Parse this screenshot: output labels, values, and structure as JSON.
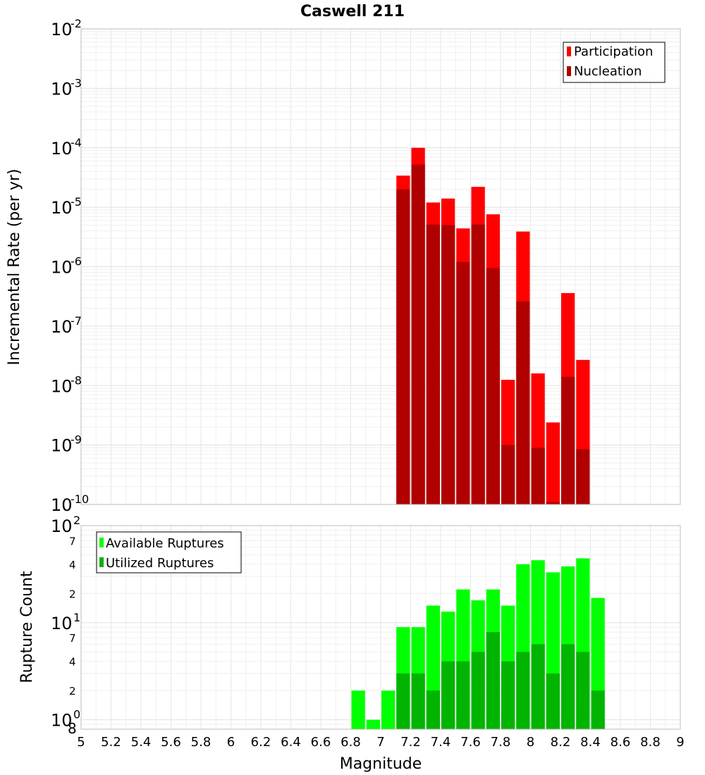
{
  "chart_data": [
    {
      "type": "bar",
      "panel": "top",
      "title": "Caswell 211",
      "ylabel": "Incremental Rate (per yr)",
      "yscale": "log",
      "ylim": [
        1e-10,
        0.01
      ],
      "xlim": [
        5,
        9
      ],
      "bar_width": 0.1,
      "grid": true,
      "legend_position": "top-right",
      "x": [
        7.15,
        7.25,
        7.35,
        7.45,
        7.55,
        7.65,
        7.75,
        7.85,
        7.95,
        8.05,
        8.15,
        8.25,
        8.35
      ],
      "series": [
        {
          "name": "Participation",
          "color": "#ff0000",
          "values": [
            3.4e-05,
            0.0001,
            1.2e-05,
            1.4e-05,
            4.4e-06,
            2.2e-05,
            7.6e-06,
            1.25e-08,
            3.9e-06,
            1.6e-08,
            2.4e-09,
            3.6e-07,
            2.7e-08
          ]
        },
        {
          "name": "Nucleation",
          "color": "#b00000",
          "values": [
            2e-05,
            5.2e-05,
            5.1e-06,
            5e-06,
            1.2e-06,
            5.1e-06,
            9.5e-07,
            1e-09,
            2.6e-07,
            9e-10,
            1.1e-10,
            1.4e-08,
            8.5e-10
          ]
        }
      ]
    },
    {
      "type": "bar",
      "panel": "bottom",
      "xlabel": "Magnitude",
      "ylabel": "Rupture Count",
      "yscale": "log",
      "ylim": [
        0.8,
        100
      ],
      "xlim": [
        5,
        9
      ],
      "bar_width": 0.1,
      "grid": true,
      "legend_position": "top-left",
      "x": [
        6.85,
        6.95,
        7.05,
        7.15,
        7.25,
        7.35,
        7.45,
        7.55,
        7.65,
        7.75,
        7.85,
        7.95,
        8.05,
        8.15,
        8.25,
        8.35,
        8.45
      ],
      "series": [
        {
          "name": "Available Ruptures",
          "color": "#00ff00",
          "values": [
            2,
            1,
            2,
            9,
            9,
            15,
            13,
            22,
            17,
            22,
            15,
            40,
            44,
            33,
            38,
            46,
            18
          ]
        },
        {
          "name": "Utilized Ruptures",
          "color": "#00b400",
          "values": [
            0,
            0,
            0,
            3,
            3,
            2,
            4,
            4,
            5,
            8,
            4,
            5,
            6,
            3,
            6,
            5,
            2
          ]
        }
      ]
    }
  ],
  "x_ticks": [
    "5",
    "5.2",
    "5.4",
    "5.6",
    "5.8",
    "6",
    "6.2",
    "6.4",
    "6.6",
    "6.8",
    "7",
    "7.2",
    "7.4",
    "7.6",
    "7.8",
    "8",
    "8.2",
    "8.4",
    "8.6",
    "8.8",
    "9"
  ],
  "top_y_ticks": [
    {
      "base": "10",
      "exp": "-2",
      "value": 0.01
    },
    {
      "base": "10",
      "exp": "-3",
      "value": 0.001
    },
    {
      "base": "10",
      "exp": "-4",
      "value": 0.0001
    },
    {
      "base": "10",
      "exp": "-5",
      "value": 1e-05
    },
    {
      "base": "10",
      "exp": "-6",
      "value": 1e-06
    },
    {
      "base": "10",
      "exp": "-7",
      "value": 1e-07
    },
    {
      "base": "10",
      "exp": "-8",
      "value": 1e-08
    },
    {
      "base": "10",
      "exp": "-9",
      "value": 1e-09
    },
    {
      "base": "10",
      "exp": "-10",
      "value": 1e-10
    }
  ],
  "bottom_y_ticks": [
    {
      "base": "10",
      "exp": "2",
      "value": 100
    },
    {
      "base": "10",
      "exp": "1",
      "value": 10
    },
    {
      "base": "10",
      "exp": "0",
      "value": 1
    }
  ],
  "bottom_y_minor_labels": [
    {
      "label": "7",
      "value": 70
    },
    {
      "label": "4",
      "value": 40
    },
    {
      "label": "2",
      "value": 20
    },
    {
      "label": "7",
      "value": 7
    },
    {
      "label": "4",
      "value": 4
    },
    {
      "label": "2",
      "value": 2
    },
    {
      "label": "8",
      "value": 0.8
    }
  ]
}
